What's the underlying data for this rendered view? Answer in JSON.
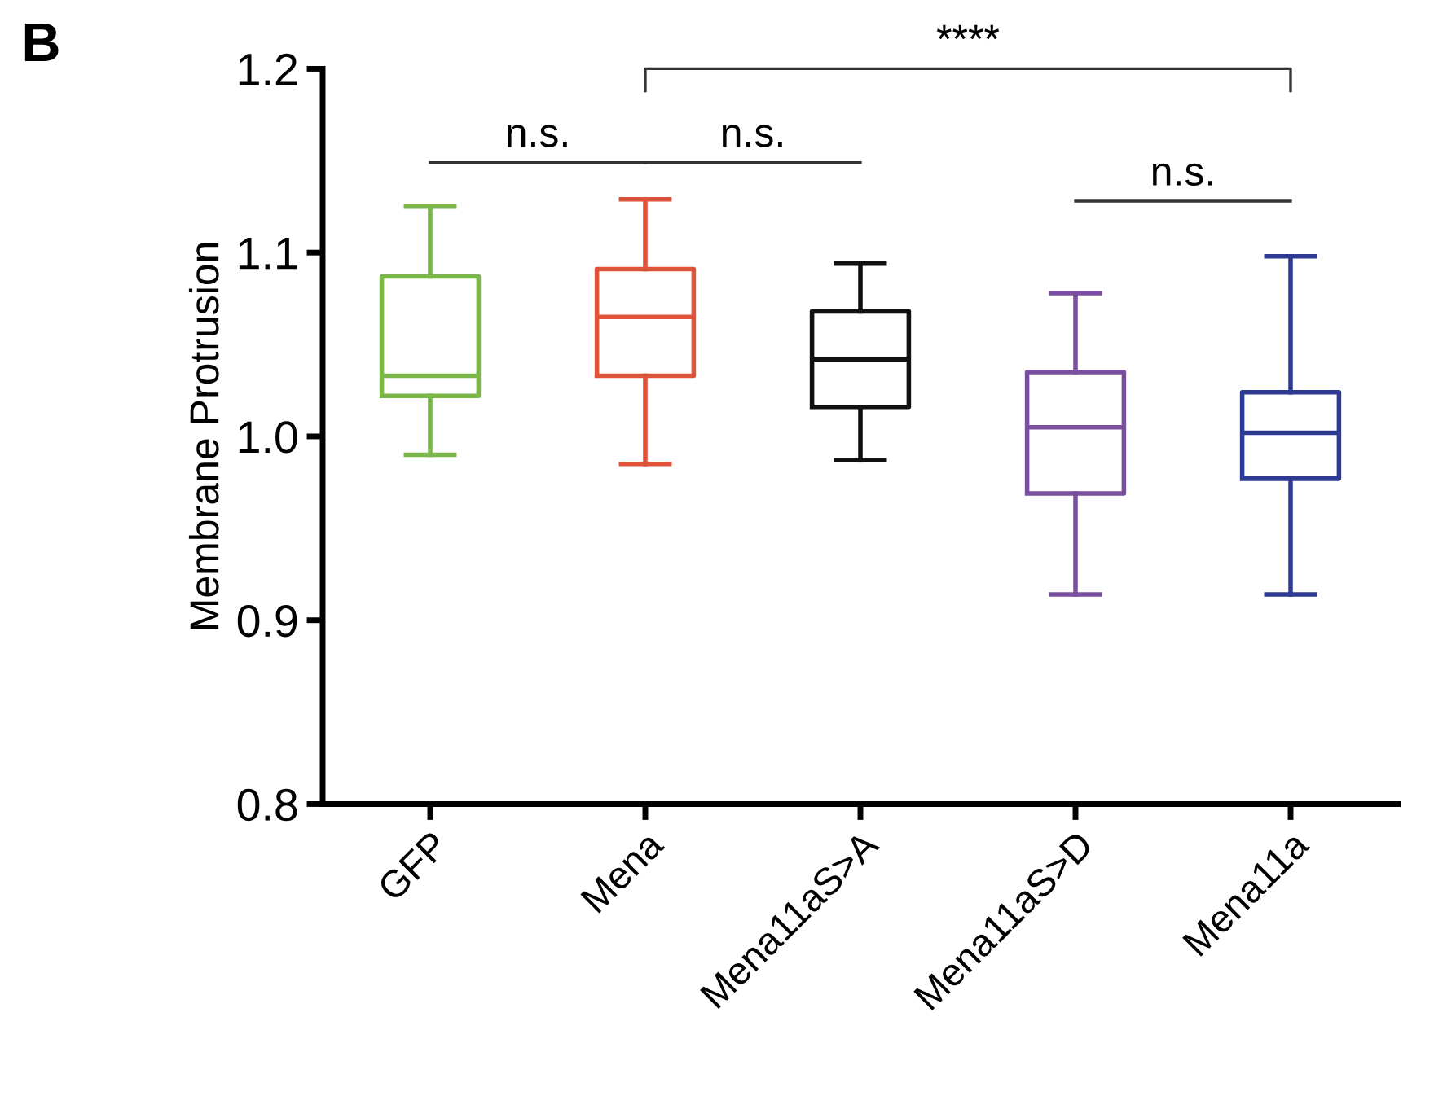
{
  "chart_data": {
    "type": "box",
    "ylabel": "Membrane Protrusion",
    "categories": [
      "GFP",
      "Mena",
      "Mena11aS>A",
      "Mena11aS>D",
      "Mena11a"
    ],
    "colors": [
      "#7ab648",
      "#e0533a",
      "#111111",
      "#7a4fa0",
      "#2e3a94"
    ],
    "boxes": [
      {
        "low": 0.99,
        "q1": 1.022,
        "median": 1.033,
        "q3": 1.087,
        "high": 1.125
      },
      {
        "low": 0.985,
        "q1": 1.033,
        "median": 1.065,
        "q3": 1.091,
        "high": 1.129
      },
      {
        "low": 0.987,
        "q1": 1.016,
        "median": 1.042,
        "q3": 1.068,
        "high": 1.094
      },
      {
        "low": 0.914,
        "q1": 0.969,
        "median": 1.005,
        "q3": 1.035,
        "high": 1.078
      },
      {
        "low": 0.914,
        "q1": 0.977,
        "median": 1.002,
        "q3": 1.024,
        "high": 1.098
      }
    ],
    "ylim": [
      0.8,
      1.2
    ],
    "yticks": [
      0.8,
      0.9,
      {
        "value": 1,
        "label": "1.0"
      },
      1.1,
      1.2
    ],
    "annotations": [
      "B",
      "n.s.",
      "n.s.",
      "n.s.",
      "****"
    ],
    "grid": false,
    "legend": false
  }
}
